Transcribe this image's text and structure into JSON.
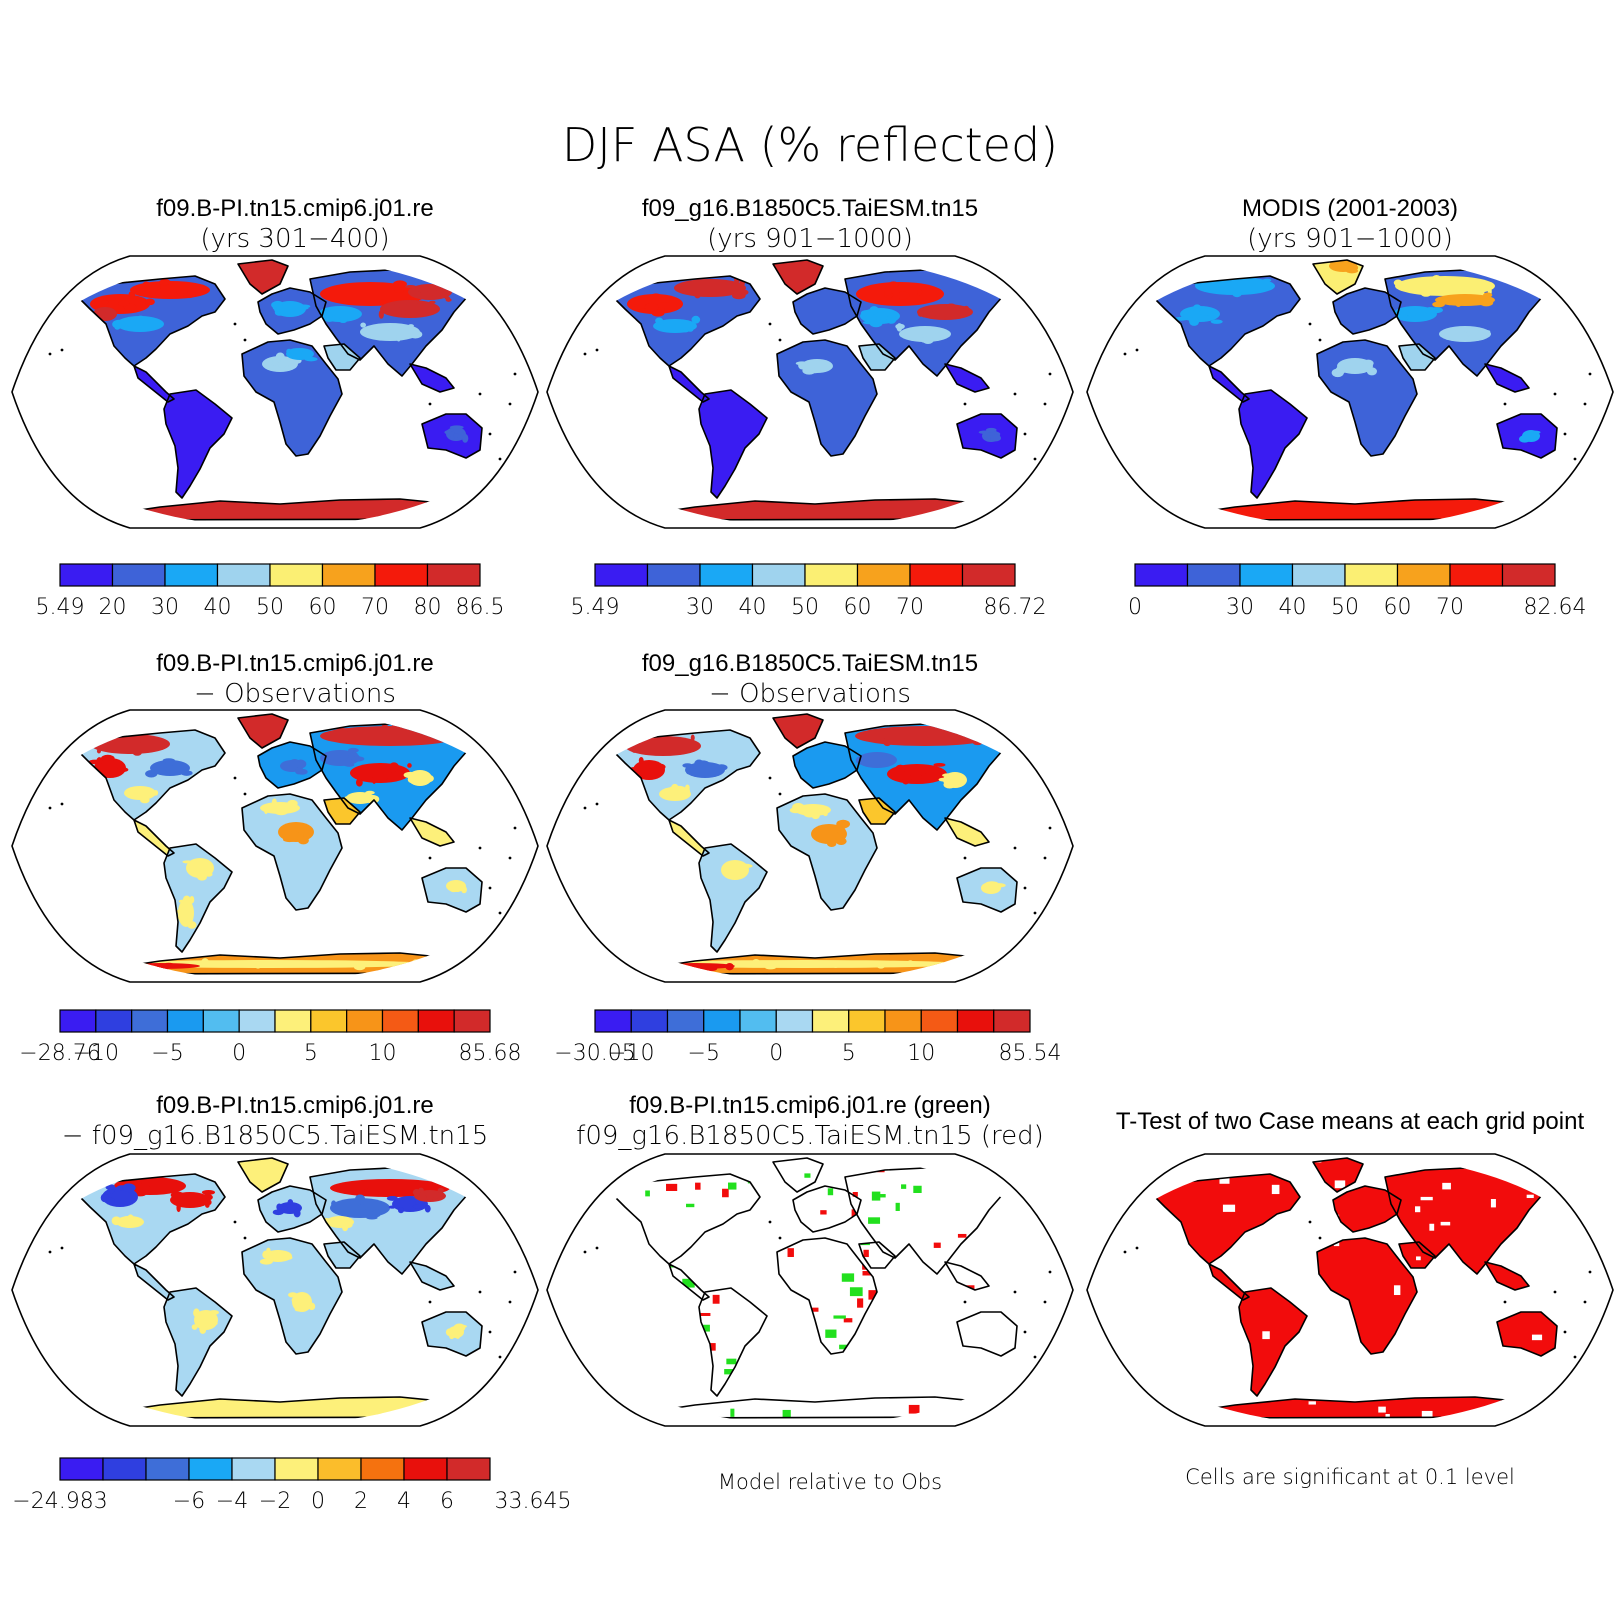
{
  "title": "DJF ASA (% reflected)",
  "palettes": {
    "abs": [
      "#3a1cf2",
      "#3e63d8",
      "#1aa8f5",
      "#9fd3ee",
      "#fbef73",
      "#f7a21d",
      "#f41a0b",
      "#d22a2a"
    ],
    "diff": [
      "#3a1cf2",
      "#2f3fe0",
      "#3e6ed8",
      "#1a9af0",
      "#52bdf0",
      "#a9d8f2",
      "#fdf07a",
      "#fbc62c",
      "#f79418",
      "#f45a15",
      "#e8100c",
      "#d22a2a"
    ],
    "diff_case": [
      "#3a1cf2",
      "#2f3fe0",
      "#3e6ed8",
      "#1aa8f5",
      "#a9d8f2",
      "#fdf07a",
      "#fbbd2b",
      "#f5720f",
      "#e8100c",
      "#d22a2a"
    ],
    "green": "#22e01e",
    "red": "#f20c0c"
  },
  "panels": [
    {
      "id": "p1",
      "title1": "f09.B-PI.tn15.cmip6.j01.re",
      "title2": "(yrs 301−400)",
      "scheme": "model1",
      "palette": "abs",
      "labels": [
        "5.49",
        "20",
        "30",
        "40",
        "50",
        "60",
        "70",
        "80",
        "86.5"
      ]
    },
    {
      "id": "p2",
      "title1": "f09_g16.B1850C5.TaiESM.tn15",
      "title2": "(yrs 901−1000)",
      "scheme": "model2",
      "palette": "abs",
      "labels": [
        "5.49",
        "",
        "30",
        "40",
        "50",
        "60",
        "70",
        "",
        "86.72"
      ]
    },
    {
      "id": "p3",
      "title1": "MODIS (2001-2003)",
      "title2": "(yrs 901−1000)",
      "scheme": "obs",
      "palette": "abs",
      "labels": [
        "0",
        "",
        "30",
        "40",
        "50",
        "60",
        "70",
        "",
        "82.64"
      ]
    },
    {
      "id": "p4",
      "title1": "f09.B-PI.tn15.cmip6.j01.re",
      "title2": "− Observations",
      "scheme": "diff1",
      "palette": "diff",
      "labels": [
        "−28.76",
        "−10",
        "",
        "−5",
        "",
        "0",
        "",
        "5",
        "",
        "10",
        "",
        "",
        "85.68"
      ]
    },
    {
      "id": "p5",
      "title1": "f09_g16.B1850C5.TaiESM.tn15",
      "title2": "− Observations",
      "scheme": "diff2",
      "palette": "diff",
      "labels": [
        "−30.05",
        "−10",
        "",
        "−5",
        "",
        "0",
        "",
        "5",
        "",
        "10",
        "",
        "",
        "85.54"
      ]
    },
    {
      "id": "p7",
      "title1": "f09.B-PI.tn15.cmip6.j01.re",
      "title2": "− f09_g16.B1850C5.TaiESM.tn15",
      "scheme": "diffcase",
      "palette": "diff_case",
      "labels": [
        "−24.983",
        "",
        "",
        "−6",
        "−4",
        "−2",
        "0",
        "2",
        "4",
        "6",
        "",
        "33.645"
      ]
    },
    {
      "id": "p8",
      "title1": "f09.B-PI.tn15.cmip6.j01.re (green)",
      "title2": "f09_g16.B1850C5.TaiESM.tn15 (red)",
      "scheme": "greenred",
      "note": "Model relative to Obs"
    },
    {
      "id": "p9",
      "title1": "T-Test of two Case means at each grid point",
      "title2": "",
      "scheme": "ttest",
      "note": "Cells are significant at 0.1 level"
    }
  ]
}
